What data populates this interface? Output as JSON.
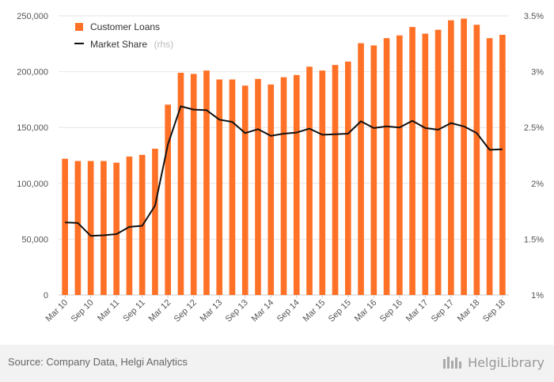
{
  "chart_data": {
    "type": "bar",
    "categories": [
      "Mar 10",
      "Jun 10",
      "Sep 10",
      "Dec 10",
      "Mar 11",
      "Jun 11",
      "Sep 11",
      "Dec 11",
      "Mar 12",
      "Jun 12",
      "Sep 12",
      "Dec 12",
      "Mar 13",
      "Jun 13",
      "Sep 13",
      "Dec 13",
      "Mar 14",
      "Jun 14",
      "Sep 14",
      "Dec 14",
      "Mar 15",
      "Jun 15",
      "Sep 15",
      "Dec 15",
      "Mar 16",
      "Jun 16",
      "Sep 16",
      "Dec 16",
      "Mar 17",
      "Jun 17",
      "Sep 17",
      "Dec 17",
      "Mar 18",
      "Jun 18",
      "Sep 18"
    ],
    "x_tick_labels": [
      "Mar 10",
      "Sep 10",
      "Mar 11",
      "Sep 11",
      "Mar 12",
      "Sep 12",
      "Mar 13",
      "Sep 13",
      "Mar 14",
      "Sep 14",
      "Mar 15",
      "Sep 15",
      "Mar 16",
      "Sep 16",
      "Mar 17",
      "Sep 17",
      "Mar 18",
      "Sep 18"
    ],
    "series": [
      {
        "name": "Customer Loans",
        "type": "bar",
        "axis": "left",
        "color": "#FF7126",
        "values": [
          122000,
          120000,
          120000,
          120000,
          118500,
          124000,
          125500,
          131000,
          170500,
          199000,
          198000,
          201000,
          193000,
          193000,
          187500,
          193500,
          188500,
          195000,
          197000,
          204500,
          201000,
          206000,
          209000,
          225500,
          223500,
          230000,
          232500,
          240000,
          234000,
          237500,
          246000,
          247500,
          242000,
          230000,
          233000
        ]
      },
      {
        "name": "Market Share",
        "name_suffix": "(rhs)",
        "type": "line",
        "axis": "right",
        "color": "#111111",
        "values": [
          1.65,
          1.645,
          1.53,
          1.535,
          1.545,
          1.61,
          1.62,
          1.8,
          2.35,
          2.69,
          2.66,
          2.655,
          2.57,
          2.55,
          2.45,
          2.485,
          2.425,
          2.445,
          2.455,
          2.49,
          2.435,
          2.44,
          2.445,
          2.555,
          2.495,
          2.51,
          2.5,
          2.56,
          2.495,
          2.48,
          2.54,
          2.51,
          2.45,
          2.3,
          2.305
        ]
      }
    ],
    "y_left": {
      "ylim": [
        0,
        250000
      ],
      "ticks": [
        "0",
        "50,000",
        "100,000",
        "150,000",
        "200,000",
        "250,000"
      ]
    },
    "y_right": {
      "ylim": [
        1.0,
        3.5
      ],
      "ticks": [
        "1%",
        "1.5%",
        "2%",
        "2.5%",
        "3%",
        "3.5%"
      ]
    },
    "grid": true,
    "legend_position": "top-left"
  },
  "footer": {
    "source": "Source: Company Data, Helgi Analytics",
    "logo_text": "HelgiLibrary"
  }
}
